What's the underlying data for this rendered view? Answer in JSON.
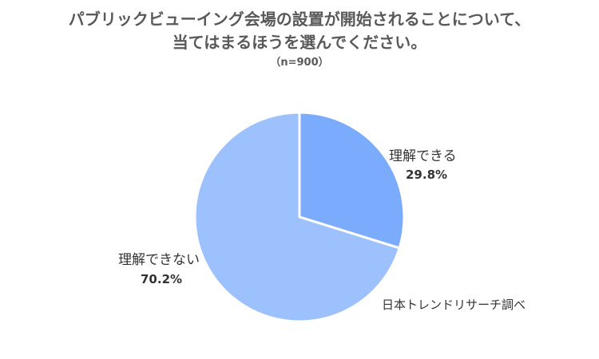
{
  "chart_data": {
    "type": "pie",
    "title": [
      "パブリックビューイング会場の設置が開始されることについて、",
      "当てはまるほうを選んでください。"
    ],
    "subtitle": "（n=900）",
    "categories": [
      "理解できる",
      "理解できない"
    ],
    "values": [
      29.8,
      70.2
    ],
    "value_labels": [
      "29.8%",
      "70.2%"
    ],
    "colors": [
      "#7aabfd",
      "#9cc1fd"
    ],
    "start_angle": "12 o'clock",
    "direction": "clockwise",
    "legend": "none",
    "source": "日本トレンドリサーチ調べ"
  }
}
